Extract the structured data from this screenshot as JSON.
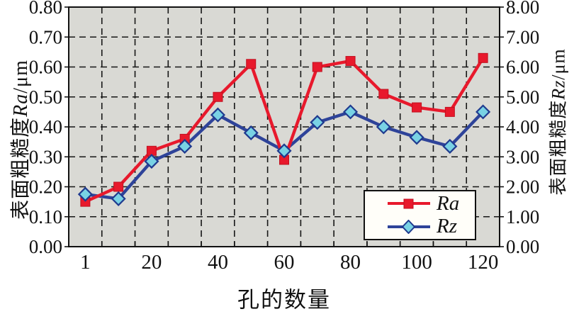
{
  "chart_data": {
    "type": "line",
    "title": "",
    "xlabel": "孔的数量",
    "categories": [
      1,
      10,
      20,
      30,
      40,
      50,
      60,
      70,
      80,
      90,
      100,
      110,
      120
    ],
    "x_tick_labels": [
      "1",
      "20",
      "40",
      "60",
      "80",
      "100",
      "120"
    ],
    "x_labeled_slot_indices": [
      0,
      2,
      4,
      6,
      8,
      10,
      12
    ],
    "left_axis": {
      "prefix": "表面粗糙度",
      "symbol": "Ra",
      "suffix": "/μm",
      "min": 0,
      "max": 0.8,
      "step": 0.1,
      "tick_labels": [
        "0.80",
        "0.70",
        "0.60",
        "0.50",
        "0.40",
        "0.30",
        "0.20",
        "0.10",
        "0.00"
      ]
    },
    "right_axis": {
      "prefix": "表面粗糙度",
      "symbol": "Rz",
      "suffix": "/μm",
      "min": 0,
      "max": 8,
      "step": 1,
      "tick_labels": [
        "8.00",
        "7.00",
        "6.00",
        "5.00",
        "4.00",
        "3.00",
        "2.00",
        "1.00",
        "0.00"
      ]
    },
    "series": [
      {
        "name": "Ra",
        "axis": "left",
        "marker": "square",
        "line_color": "#e8192c",
        "marker_fill": "#e8192c",
        "marker_border": "#c0101f",
        "values": [
          0.15,
          0.2,
          0.32,
          0.36,
          0.5,
          0.61,
          0.29,
          0.6,
          0.62,
          0.51,
          0.465,
          0.45,
          0.63
        ]
      },
      {
        "name": "Rz",
        "axis": "right",
        "marker": "diamond",
        "line_color": "#2e4399",
        "marker_fill": "#79d2e4",
        "marker_border": "#1f3a8f",
        "values": [
          1.75,
          1.6,
          2.85,
          3.35,
          4.4,
          3.8,
          3.2,
          4.15,
          4.5,
          4.0,
          3.65,
          3.35,
          4.5
        ]
      }
    ],
    "grid": "dashed-black",
    "plot_bg": "#d9d9d4",
    "legend_position": "inside-bottom-right",
    "legend_labels": [
      "Ra",
      "Rz"
    ]
  }
}
